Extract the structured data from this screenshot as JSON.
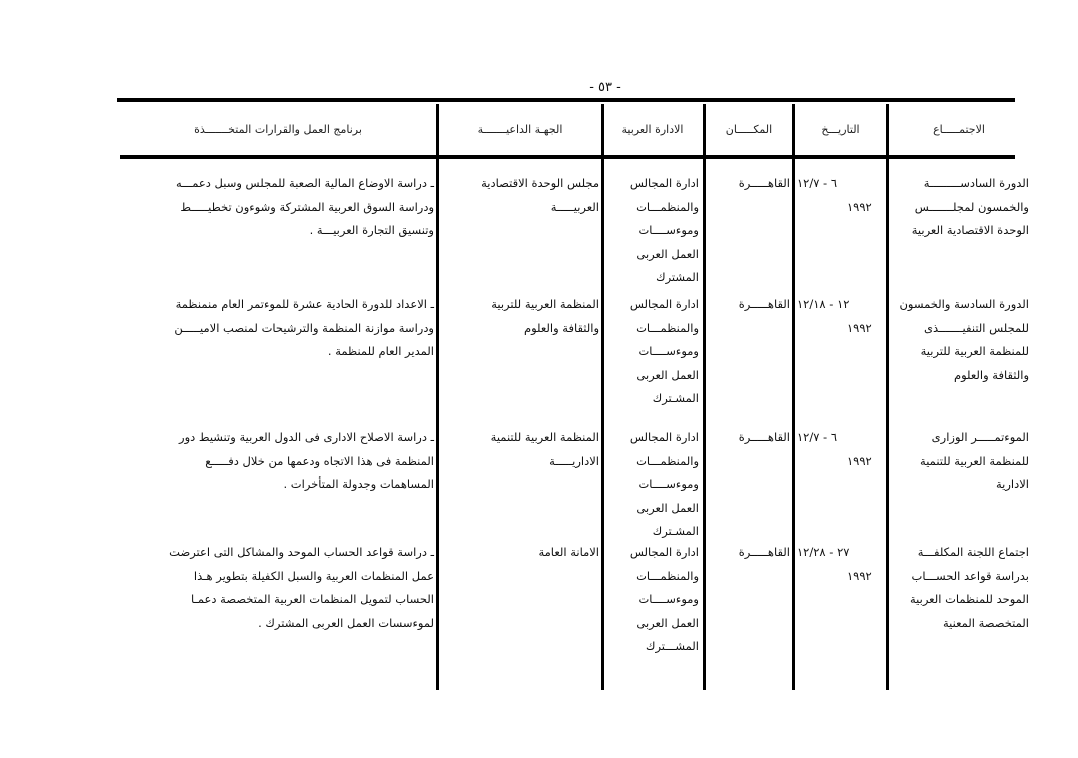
{
  "page_number": "- ٥٣ -",
  "headers": {
    "meeting": "الاجتمـــــاع",
    "date": "التاريـــخ",
    "place": "المكـــــان",
    "arab_admin": "الادارة العربية",
    "entity": "الجهـة الداعيـــــــة",
    "program": "برنامج العمل والقرارات المتخـــــــذة"
  },
  "rows": [
    {
      "meeting": [
        "الدورة السادســـــــــة",
        "والخمسون لمجلـــــــس",
        "الوحدة الاقتصادية العربية"
      ],
      "date": [
        "٦ - ١٢/٧",
        "١٩٩٢"
      ],
      "place": [
        "القاهـــــرة"
      ],
      "arab_admin": [
        "ادارة المجالس",
        "والمنظمـــات",
        "وموءســــات",
        "العمل العربى",
        "المشترك"
      ],
      "entity": [
        "مجلس الوحدة الاقتصادية",
        "العربيـــــة"
      ],
      "program": [
        "ـ دراسة الاوضاع المالية الصعبة للمجلس وسبل دعمـــه",
        "ودراسة السوق العربية المشتركة وشوءون تخطيـــــط",
        "وتنسيق التجارة العربيـــة ."
      ]
    },
    {
      "meeting": [
        "الدورة السادسة والخمسون",
        "للمجلس التنفيـــــــذى",
        "للمنظمة العربية للتربية",
        "والثقافة والعلوم"
      ],
      "date": [
        "١٢ - ١٢/١٨",
        "١٩٩٢"
      ],
      "place": [
        "القاهـــــرة"
      ],
      "arab_admin": [
        "ادارة المجالس",
        "والمنظمـــات",
        "وموءســــات",
        "العمل العربى",
        "المشـترك"
      ],
      "entity": [
        "المنظمة العربية للتربية",
        "والثقافة والعلوم"
      ],
      "program": [
        "ـ الاعداد للدورة الحادية عشرة للموءتمر العام منمنظمة",
        "ودراسة موازنة المنظمة والترشيحات لمنصب الاميـــــن",
        "المدير العام للمنظمة ."
      ]
    },
    {
      "meeting": [
        "الموءتمـــــر الوزارى",
        "للمنظمة العربية للتنمية",
        "الادارية"
      ],
      "date": [
        "٦ - ١٢/٧",
        "١٩٩٢"
      ],
      "place": [
        "القاهـــــرة"
      ],
      "arab_admin": [
        "ادارة المجالس",
        "والمنظمـــات",
        "وموءســــات",
        "العمل العربى",
        "المشـترك"
      ],
      "entity": [
        "المنظمة العربية للتنمية",
        "الاداريـــــة"
      ],
      "program": [
        "ـ دراسة الاصلاح الادارى فى الدول العربية وتنشيط دور",
        "المنظمة فى هذا الاتجاه ودعمها من خلال دفـــــع",
        "المساهمات وجدولة المتأخرات ."
      ]
    },
    {
      "meeting": [
        "اجتماع اللجنة المكلفـــة",
        "بدراسة قواعد الحســـاب",
        "الموحد للمنظمات العربية",
        "المتخصصة المعنية"
      ],
      "date": [
        "٢٧ - ١٢/٢٨",
        "١٩٩٢"
      ],
      "place": [
        "القاهـــــرة"
      ],
      "arab_admin": [
        "ادارة المجالس",
        "والمنظمـــات",
        "وموءســــات",
        "العمل العربى",
        "المشـــترك"
      ],
      "entity": [
        "الامانة العامة"
      ],
      "program": [
        "ـ دراسة قواعد الحساب الموحد والمشاكل التى اعترضت",
        "عمل المنظمات العربية والسبل الكفيلة بتطوير هـذا",
        "الحساب لتمويل المنظمات العربية المتخصصة دعمـا",
        "لموءسسات العمل العربى المشترك ."
      ]
    }
  ]
}
